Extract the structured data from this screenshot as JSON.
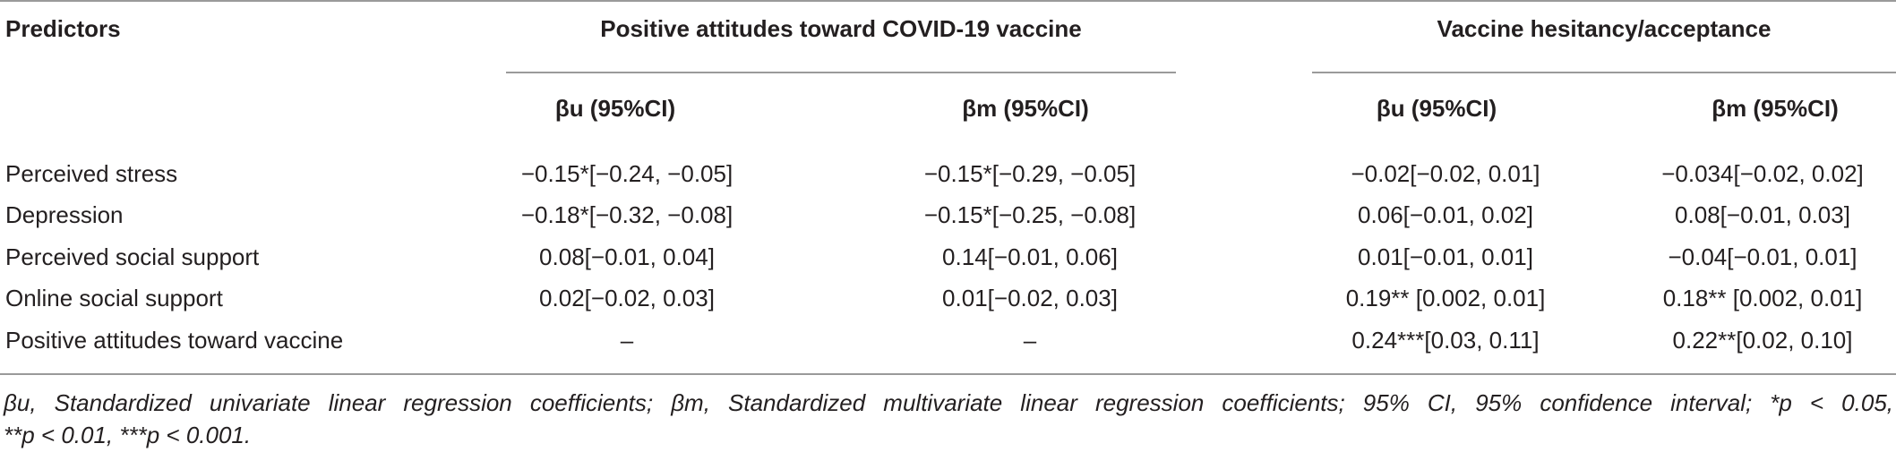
{
  "table": {
    "header": {
      "predictors": "Predictors",
      "group1": "Positive attitudes toward COVID-19 vaccine",
      "group2": "Vaccine hesitancy/acceptance",
      "sub": [
        "βu (95%CI)",
        "βm (95%CI)",
        "βu (95%CI)",
        "βm (95%CI)"
      ]
    },
    "rows": [
      {
        "label": "Perceived stress",
        "cells": [
          "−0.15*[−0.24, −0.05]",
          "−0.15*[−0.29, −0.05]",
          "−0.02[−0.02, 0.01]",
          "−0.034[−0.02, 0.02]"
        ]
      },
      {
        "label": "Depression",
        "cells": [
          "−0.18*[−0.32, −0.08]",
          "−0.15*[−0.25, −0.08]",
          "0.06[−0.01, 0.02]",
          "0.08[−0.01, 0.03]"
        ]
      },
      {
        "label": "Perceived social support",
        "cells": [
          "0.08[−0.01, 0.04]",
          "0.14[−0.01, 0.06]",
          "0.01[−0.01, 0.01]",
          "−0.04[−0.01, 0.01]"
        ]
      },
      {
        "label": "Online social support",
        "cells": [
          "0.02[−0.02, 0.03]",
          "0.01[−0.02, 0.03]",
          "0.19** [0.002, 0.01]",
          "0.18** [0.002, 0.01]"
        ]
      },
      {
        "label": "Positive attitudes toward vaccine",
        "cells": [
          "–",
          "–",
          "0.24***[0.03, 0.11]",
          "0.22**[0.02, 0.10]"
        ]
      }
    ],
    "footnote_line1": "βu, Standardized univariate linear regression coefficients; βm, Standardized multivariate linear regression coefficients; 95% CI, 95% confidence interval; *p < 0.05,",
    "footnote_line2": "**p < 0.01, ***p < 0.001."
  }
}
